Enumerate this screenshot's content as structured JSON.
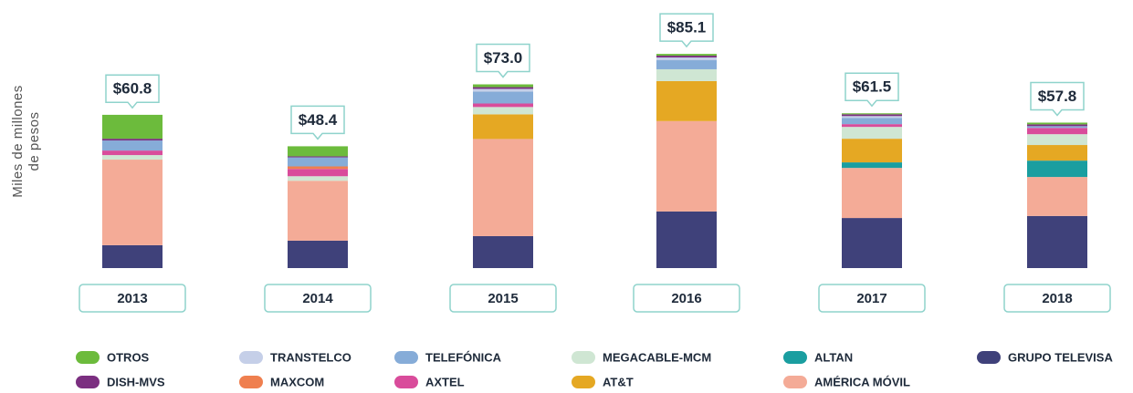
{
  "chart_data": {
    "type": "stacked_bar",
    "y_label": [
      "Miles de millones",
      "de pesos"
    ],
    "categories": [
      "2013",
      "2014",
      "2015",
      "2016",
      "2017",
      "2018"
    ],
    "totals": [
      60.8,
      48.4,
      73.0,
      85.1,
      61.5,
      57.8
    ],
    "total_labels": [
      "$60.8",
      "$48.4",
      "$73.0",
      "$85.1",
      "$61.5",
      "$57.8"
    ],
    "ylim": [
      0,
      100
    ],
    "series": [
      {
        "name": "GRUPO TELEVISA",
        "color": "#3f417a",
        "values": [
          9.1,
          10.9,
          12.7,
          22.5,
          19.9,
          20.7
        ]
      },
      {
        "name": "AMÉRICA MÓVIL",
        "color": "#f4ab97",
        "values": [
          34.0,
          23.8,
          38.6,
          35.9,
          19.9,
          15.5
        ]
      },
      {
        "name": "ALTAN",
        "color": "#1a9ea0",
        "values": [
          0,
          0,
          0,
          0,
          2.2,
          6.5
        ]
      },
      {
        "name": "AT&T",
        "color": "#e5a823",
        "values": [
          0,
          0,
          9.8,
          15.9,
          9.4,
          6.2
        ]
      },
      {
        "name": "MEGACABLE-MCM",
        "color": "#cfe6d3",
        "values": [
          1.8,
          1.8,
          2.9,
          4.7,
          4.7,
          4.3
        ]
      },
      {
        "name": "AXTEL",
        "color": "#d94c9b",
        "values": [
          1.8,
          2.9,
          1.4,
          0,
          1.1,
          2.5
        ]
      },
      {
        "name": "MAXCOM",
        "color": "#ef7f4f",
        "values": [
          0,
          1.0,
          0,
          0,
          0,
          0
        ]
      },
      {
        "name": "TELEFÓNICA",
        "color": "#86acd8",
        "values": [
          4.0,
          3.6,
          4.7,
          3.6,
          2.5,
          0.7
        ]
      },
      {
        "name": "TRANSTELCO",
        "color": "#c5cfe8",
        "values": [
          0,
          0,
          1.1,
          1.1,
          0.7,
          0
        ]
      },
      {
        "name": "DISH-MVS",
        "color": "#7b2f80",
        "values": [
          0.7,
          0.4,
          0.7,
          0.7,
          0.7,
          0.7
        ]
      },
      {
        "name": "OTROS",
        "color": "#6cbb3c",
        "values": [
          9.5,
          4.0,
          1.1,
          0.7,
          0.4,
          0.7
        ]
      }
    ]
  }
}
